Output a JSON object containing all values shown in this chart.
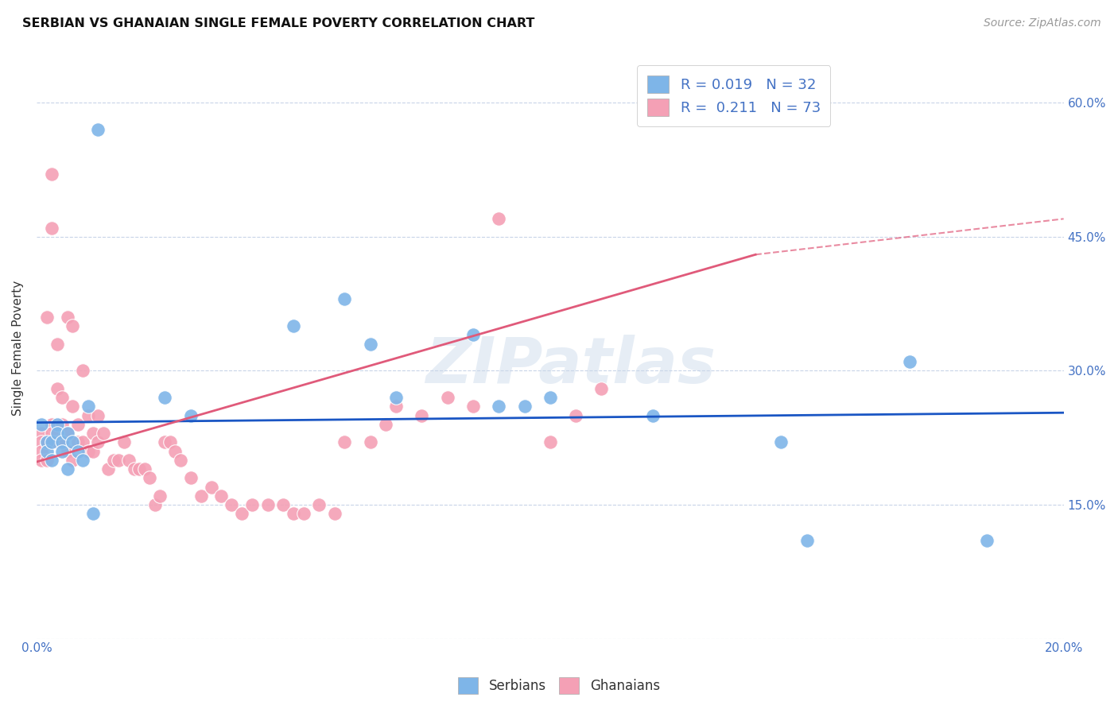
{
  "title": "SERBIAN VS GHANAIAN SINGLE FEMALE POVERTY CORRELATION CHART",
  "source": "Source: ZipAtlas.com",
  "ylabel": "Single Female Poverty",
  "xlim": [
    0.0,
    0.2
  ],
  "ylim": [
    0.0,
    0.65
  ],
  "xticks": [
    0.0,
    0.05,
    0.1,
    0.15,
    0.2
  ],
  "xtick_labels": [
    "0.0%",
    "",
    "",
    "",
    "20.0%"
  ],
  "yticks": [
    0.0,
    0.15,
    0.3,
    0.45,
    0.6
  ],
  "ytick_labels_right": [
    "",
    "15.0%",
    "30.0%",
    "45.0%",
    "60.0%"
  ],
  "serbian_color": "#7eb5e8",
  "ghanaian_color": "#f4a0b5",
  "serbian_line_color": "#1a56c4",
  "ghanaian_line_color": "#e05a7a",
  "background_color": "#ffffff",
  "grid_color": "#c8d4e8",
  "legend_R1": "0.019",
  "legend_N1": "32",
  "legend_R2": "0.211",
  "legend_N2": "73",
  "watermark": "ZIPatlas",
  "serbian_x": [
    0.001,
    0.002,
    0.002,
    0.003,
    0.003,
    0.004,
    0.004,
    0.005,
    0.005,
    0.006,
    0.006,
    0.007,
    0.008,
    0.009,
    0.01,
    0.011,
    0.012,
    0.025,
    0.03,
    0.05,
    0.06,
    0.065,
    0.07,
    0.085,
    0.09,
    0.095,
    0.1,
    0.12,
    0.145,
    0.15,
    0.17,
    0.185
  ],
  "serbian_y": [
    0.24,
    0.22,
    0.21,
    0.22,
    0.2,
    0.24,
    0.23,
    0.22,
    0.21,
    0.23,
    0.19,
    0.22,
    0.21,
    0.2,
    0.26,
    0.14,
    0.57,
    0.27,
    0.25,
    0.35,
    0.38,
    0.33,
    0.27,
    0.34,
    0.26,
    0.26,
    0.27,
    0.25,
    0.22,
    0.11,
    0.31,
    0.11
  ],
  "ghanaian_x": [
    0.001,
    0.001,
    0.001,
    0.001,
    0.002,
    0.002,
    0.002,
    0.003,
    0.003,
    0.003,
    0.003,
    0.004,
    0.004,
    0.004,
    0.005,
    0.005,
    0.005,
    0.006,
    0.006,
    0.006,
    0.007,
    0.007,
    0.007,
    0.008,
    0.008,
    0.009,
    0.009,
    0.01,
    0.01,
    0.011,
    0.011,
    0.012,
    0.012,
    0.013,
    0.014,
    0.015,
    0.016,
    0.017,
    0.018,
    0.019,
    0.02,
    0.021,
    0.022,
    0.023,
    0.024,
    0.025,
    0.026,
    0.027,
    0.028,
    0.03,
    0.032,
    0.034,
    0.036,
    0.038,
    0.04,
    0.042,
    0.045,
    0.048,
    0.05,
    0.052,
    0.055,
    0.058,
    0.06,
    0.065,
    0.068,
    0.07,
    0.075,
    0.08,
    0.085,
    0.09,
    0.1,
    0.105,
    0.11
  ],
  "ghanaian_y": [
    0.23,
    0.22,
    0.21,
    0.2,
    0.36,
    0.22,
    0.2,
    0.52,
    0.46,
    0.24,
    0.23,
    0.33,
    0.28,
    0.22,
    0.27,
    0.24,
    0.22,
    0.36,
    0.23,
    0.21,
    0.35,
    0.26,
    0.2,
    0.24,
    0.22,
    0.3,
    0.22,
    0.25,
    0.21,
    0.23,
    0.21,
    0.25,
    0.22,
    0.23,
    0.19,
    0.2,
    0.2,
    0.22,
    0.2,
    0.19,
    0.19,
    0.19,
    0.18,
    0.15,
    0.16,
    0.22,
    0.22,
    0.21,
    0.2,
    0.18,
    0.16,
    0.17,
    0.16,
    0.15,
    0.14,
    0.15,
    0.15,
    0.15,
    0.14,
    0.14,
    0.15,
    0.14,
    0.22,
    0.22,
    0.24,
    0.26,
    0.25,
    0.27,
    0.26,
    0.47,
    0.22,
    0.25,
    0.28
  ]
}
